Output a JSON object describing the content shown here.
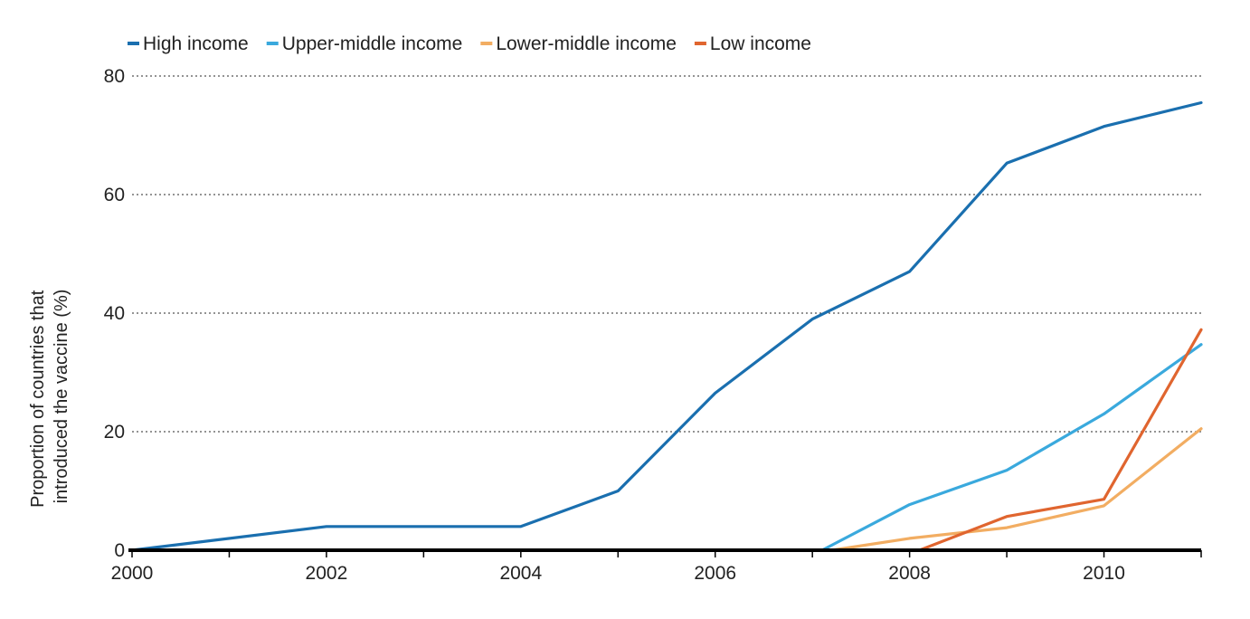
{
  "chart_data": {
    "type": "line",
    "title": "",
    "xlabel": "",
    "ylabel": "Proportion of countries that introduced the vaccine (%)",
    "ylabel_lines": [
      "Proportion of countries that",
      "introduced the vaccine (%)"
    ],
    "xlim": [
      2000,
      2011
    ],
    "ylim": [
      0,
      80
    ],
    "x_ticks": [
      2000,
      2002,
      2004,
      2006,
      2008,
      2010
    ],
    "x_tick_labels": [
      "2000",
      "2002",
      "2004",
      "2006",
      "2008",
      "2010"
    ],
    "y_ticks": [
      0,
      20,
      40,
      60,
      80
    ],
    "y_tick_labels": [
      "0",
      "20",
      "40",
      "60",
      "80"
    ],
    "grid": "horizontal dotted",
    "legend_position": "top-left",
    "series": [
      {
        "name": "High income",
        "color": "#1a6faf",
        "x": [
          2000,
          2002,
          2004,
          2005,
          2006,
          2007,
          2008,
          2009,
          2010,
          2011
        ],
        "y": [
          0,
          4,
          4,
          10,
          26.5,
          39,
          47,
          65.3,
          71.5,
          75.5
        ]
      },
      {
        "name": "Upper-middle income",
        "color": "#3aa9dd",
        "x": [
          2007.1,
          2008,
          2009,
          2010,
          2011
        ],
        "y": [
          0,
          7.7,
          13.5,
          23,
          34.7
        ]
      },
      {
        "name": "Lower-middle income",
        "color": "#f2ad62",
        "x": [
          2007.2,
          2008,
          2009,
          2010,
          2011
        ],
        "y": [
          0,
          2,
          3.8,
          7.5,
          20.5
        ]
      },
      {
        "name": "Low income",
        "color": "#e0652f",
        "x": [
          2008.1,
          2009,
          2010,
          2011
        ],
        "y": [
          0,
          5.7,
          8.6,
          37.2
        ]
      }
    ]
  }
}
